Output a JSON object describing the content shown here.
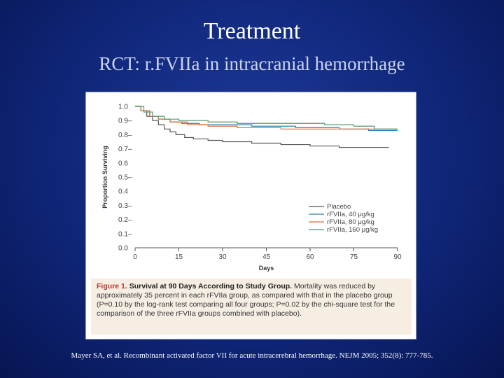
{
  "slide": {
    "title": "Treatment",
    "subtitle": "RCT: r.FVIIa in intracranial hemorrhage",
    "citation": "Mayer SA, et al. Recombinant activated factor VII for acute intracerebral hemorrhage. NEJM 2005; 352(8): 777-785."
  },
  "figure": {
    "caption_label": "Figure 1.",
    "caption_title": "Survival at 90 Days According to Study Group.",
    "caption_body": "Mortality was reduced by approximately 35 percent in each rFVIIa group, as compared with that in the placebo group (P=0.10 by the log-rank test comparing all four groups; P=0.02 by the chi-square test for the comparison of the three rFVIIa groups combined with placebo)."
  },
  "chart_data": {
    "type": "line",
    "xlabel": "Days",
    "ylabel": "Proportion Surviving",
    "xlim": [
      0,
      90
    ],
    "ylim": [
      0,
      1.0
    ],
    "xticks": [
      0,
      15,
      30,
      45,
      60,
      75,
      90
    ],
    "ytick_labels": [
      "1.0",
      "0.9–",
      "0.8–",
      "0.7–",
      "0.6",
      "0.5–",
      "0.4",
      "0.3–",
      "0.2–",
      "0.1–",
      "0.0"
    ],
    "ytick_values": [
      1.0,
      0.9,
      0.8,
      0.7,
      0.6,
      0.5,
      0.4,
      0.3,
      0.2,
      0.1,
      0.0
    ],
    "legend_position": "bottom-right",
    "series": [
      {
        "name": "Placebo",
        "color": "#555555",
        "points": [
          [
            0,
            1.0
          ],
          [
            2,
            0.97
          ],
          [
            4,
            0.93
          ],
          [
            6,
            0.9
          ],
          [
            8,
            0.87
          ],
          [
            10,
            0.84
          ],
          [
            12,
            0.82
          ],
          [
            14,
            0.8
          ],
          [
            17,
            0.78
          ],
          [
            20,
            0.77
          ],
          [
            25,
            0.76
          ],
          [
            30,
            0.75
          ],
          [
            40,
            0.74
          ],
          [
            50,
            0.73
          ],
          [
            60,
            0.72
          ],
          [
            70,
            0.71
          ],
          [
            80,
            0.71
          ],
          [
            87,
            0.71
          ]
        ]
      },
      {
        "name": "rFVIIa, 40 μg/kg",
        "color": "#2a7fb0",
        "points": [
          [
            0,
            1.0
          ],
          [
            2,
            0.97
          ],
          [
            5,
            0.93
          ],
          [
            8,
            0.91
          ],
          [
            12,
            0.89
          ],
          [
            16,
            0.88
          ],
          [
            22,
            0.87
          ],
          [
            30,
            0.87
          ],
          [
            40,
            0.86
          ],
          [
            55,
            0.85
          ],
          [
            70,
            0.84
          ],
          [
            80,
            0.83
          ],
          [
            90,
            0.83
          ]
        ]
      },
      {
        "name": "rFVIIa, 80 μg/kg",
        "color": "#e06a3a",
        "points": [
          [
            0,
            1.0
          ],
          [
            2,
            0.97
          ],
          [
            5,
            0.93
          ],
          [
            8,
            0.91
          ],
          [
            12,
            0.89
          ],
          [
            18,
            0.87
          ],
          [
            25,
            0.86
          ],
          [
            35,
            0.85
          ],
          [
            50,
            0.84
          ],
          [
            65,
            0.84
          ],
          [
            80,
            0.84
          ],
          [
            90,
            0.84
          ]
        ]
      },
      {
        "name": "rFVIIa, 160 μg/kg",
        "color": "#4f9a6e",
        "points": [
          [
            0,
            1.0
          ],
          [
            3,
            0.96
          ],
          [
            6,
            0.93
          ],
          [
            10,
            0.91
          ],
          [
            15,
            0.9
          ],
          [
            25,
            0.89
          ],
          [
            35,
            0.88
          ],
          [
            50,
            0.88
          ],
          [
            65,
            0.87
          ],
          [
            75,
            0.86
          ],
          [
            82,
            0.84
          ],
          [
            90,
            0.84
          ]
        ]
      }
    ]
  }
}
